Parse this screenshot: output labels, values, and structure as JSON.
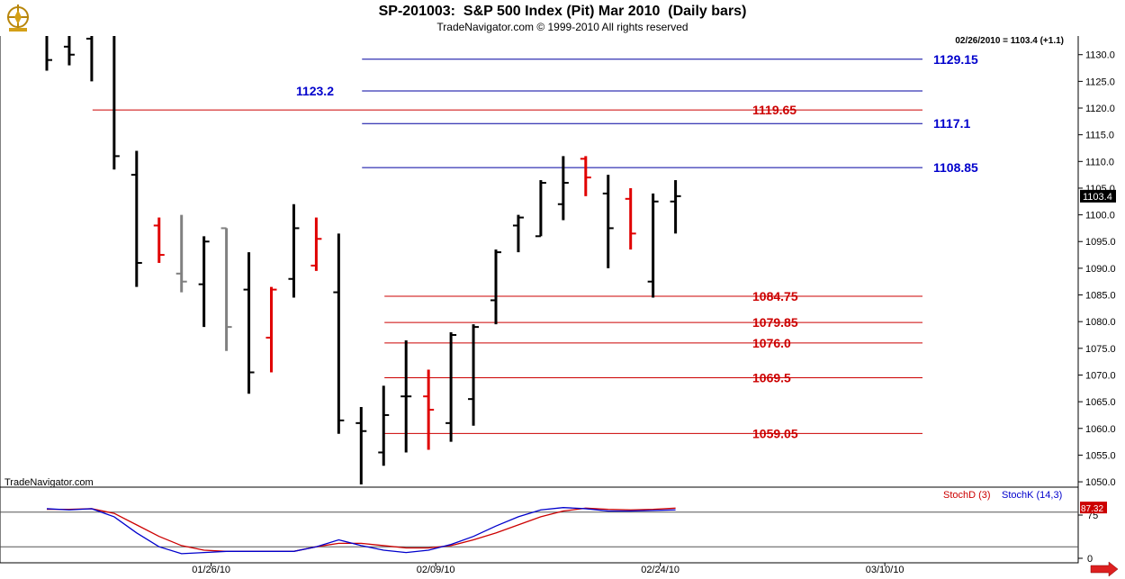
{
  "header": {
    "title": "SP-201003:  S&P 500 Index (Pit) Mar 2010  (Daily bars)",
    "copyright": "TradeNavigator.com © 1999-2010 All rights reserved",
    "last_quote": "02/26/2010 = 1103.4 (+1.1)",
    "watermark": "TradeNavigator.com"
  },
  "colors": {
    "up": "#000000",
    "down": "#e00000",
    "neutral": "#808080",
    "green": "#22dd22",
    "support_line": "#cc0000",
    "resistance_line": "#0000a0",
    "stoch_d": "#cc0000",
    "stoch_k": "#0000cc"
  },
  "chart_data": [
    {
      "type": "ohlc",
      "title": "SP-201003:  S&P 500 Index (Pit) Mar 2010  (Daily bars)",
      "ylim": [
        1049,
        1134
      ],
      "y_ticks": [
        1050.0,
        1055.0,
        1060.0,
        1065.0,
        1070.0,
        1075.0,
        1080.0,
        1085.0,
        1090.0,
        1095.0,
        1100.0,
        1105.0,
        1110.0,
        1115.0,
        1120.0,
        1125.0,
        1130.0
      ],
      "x_labels": [
        {
          "label": "01/26/10",
          "index": 7
        },
        {
          "label": "02/09/10",
          "index": 17
        },
        {
          "label": "02/24/10",
          "index": 27
        },
        {
          "label": "03/10/10",
          "index": 37
        }
      ],
      "last_price": "1103.4",
      "bars": [
        {
          "o": 1136.0,
          "h": 1136.0,
          "l": 1127.0,
          "c": 1129.0,
          "color": "black"
        },
        {
          "o": 1131.5,
          "h": 1136.0,
          "l": 1128.0,
          "c": 1130.0,
          "color": "black"
        },
        {
          "o": 1133.0,
          "h": 1136.0,
          "l": 1125.0,
          "c": 1134.0,
          "color": "black"
        },
        {
          "o": 1134.0,
          "h": 1136.0,
          "l": 1108.5,
          "c": 1111.0,
          "color": "black"
        },
        {
          "o": 1107.5,
          "h": 1112.0,
          "l": 1086.5,
          "c": 1091.0,
          "color": "black"
        },
        {
          "o": 1098.0,
          "h": 1099.5,
          "l": 1091.0,
          "c": 1092.5,
          "color": "red"
        },
        {
          "o": 1089.0,
          "h": 1100.0,
          "l": 1085.5,
          "c": 1087.5,
          "color": "gray"
        },
        {
          "o": 1087.0,
          "h": 1096.0,
          "l": 1079.0,
          "c": 1095.0,
          "color": "black"
        },
        {
          "o": 1097.5,
          "h": 1097.5,
          "l": 1074.5,
          "c": 1079.0,
          "color": "gray"
        },
        {
          "o": 1086.0,
          "h": 1093.0,
          "l": 1066.5,
          "c": 1070.5,
          "color": "black"
        },
        {
          "o": 1077.0,
          "h": 1086.5,
          "l": 1070.5,
          "c": 1086.0,
          "color": "red"
        },
        {
          "o": 1088.0,
          "h": 1102.0,
          "l": 1084.5,
          "c": 1097.5,
          "color": "black"
        },
        {
          "o": 1090.5,
          "h": 1099.5,
          "l": 1089.5,
          "c": 1095.5,
          "color": "red"
        },
        {
          "o": 1085.5,
          "h": 1096.5,
          "l": 1059.0,
          "c": 1061.5,
          "color": "black"
        },
        {
          "o": 1061.0,
          "h": 1064.0,
          "l": 1049.5,
          "c": 1059.5,
          "color": "black"
        },
        {
          "o": 1055.5,
          "h": 1068.0,
          "l": 1053.0,
          "c": 1062.5,
          "color": "black"
        },
        {
          "o": 1066.0,
          "h": 1076.5,
          "l": 1055.5,
          "c": 1066.0,
          "color": "black"
        },
        {
          "o": 1066.0,
          "h": 1071.0,
          "l": 1056.0,
          "c": 1063.5,
          "color": "red"
        },
        {
          "o": 1061.0,
          "h": 1078.0,
          "l": 1057.5,
          "c": 1077.5,
          "color": "black"
        },
        {
          "o": 1065.5,
          "h": 1079.5,
          "l": 1060.5,
          "c": 1079.0,
          "color": "black"
        },
        {
          "o": 1084.0,
          "h": 1093.5,
          "l": 1079.5,
          "c": 1093.0,
          "color": "black"
        },
        {
          "o": 1098.0,
          "h": 1100.0,
          "l": 1093.0,
          "c": 1099.5,
          "color": "black"
        },
        {
          "o": 1096.0,
          "h": 1106.5,
          "l": 1096.0,
          "c": 1106.0,
          "color": "black"
        },
        {
          "o": 1102.0,
          "h": 1111.0,
          "l": 1099.0,
          "c": 1106.0,
          "color": "black"
        },
        {
          "o": 1110.5,
          "h": 1111.0,
          "l": 1103.5,
          "c": 1107.0,
          "color": "red"
        },
        {
          "o": 1104.0,
          "h": 1107.5,
          "l": 1090.0,
          "c": 1097.5,
          "color": "black"
        },
        {
          "o": 1103.0,
          "h": 1105.0,
          "l": 1093.5,
          "c": 1096.5,
          "color": "red"
        },
        {
          "o": 1087.5,
          "h": 1104.0,
          "l": 1084.5,
          "c": 1102.5,
          "color": "black"
        },
        {
          "o": 1102.5,
          "h": 1106.5,
          "l": 1096.5,
          "c": 1103.5,
          "color": "black"
        }
      ],
      "levels": [
        {
          "value": 1129.15,
          "label": "1129.15",
          "color": "blue",
          "start_index": 15,
          "label_side": "right"
        },
        {
          "value": 1123.2,
          "label": "1123.2",
          "color": "blue",
          "start_index": 15,
          "label_side": "left"
        },
        {
          "value": 1119.65,
          "label": "1119.65",
          "color": "red",
          "start_index": 3,
          "label_side": "right"
        },
        {
          "value": 1117.1,
          "label": "1117.1",
          "color": "blue",
          "start_index": 15,
          "label_side": "right"
        },
        {
          "value": 1108.85,
          "label": "1108.85",
          "color": "blue",
          "start_index": 15,
          "label_side": "right"
        },
        {
          "value": 1084.75,
          "label": "1084.75",
          "color": "red",
          "start_index": 16,
          "label_side": "right"
        },
        {
          "value": 1079.85,
          "label": "1079.85",
          "color": "red",
          "start_index": 16,
          "label_side": "right"
        },
        {
          "value": 1076.0,
          "label": "1076.0",
          "color": "red",
          "start_index": 16,
          "label_side": "right"
        },
        {
          "value": 1069.5,
          "label": "1069.5",
          "color": "red",
          "start_index": 16,
          "label_side": "right"
        },
        {
          "value": 1059.05,
          "label": "1059.05",
          "color": "red",
          "start_index": 16,
          "label_side": "right"
        }
      ]
    },
    {
      "type": "line",
      "ylim": [
        0,
        100
      ],
      "y_ticks": [
        0,
        75
      ],
      "reference_lines": [
        20,
        80
      ],
      "last_value": "87.32",
      "series": [
        {
          "name": "StochD (3)",
          "color": "red",
          "values": [
            85,
            85,
            86,
            78,
            58,
            38,
            22,
            14,
            12,
            12,
            12,
            12,
            20,
            26,
            26,
            22,
            18,
            18,
            22,
            32,
            44,
            58,
            72,
            82,
            87,
            85,
            84,
            85,
            87
          ]
        },
        {
          "name": "StochK (14,3)",
          "color": "blue",
          "values": [
            86,
            84,
            86,
            72,
            44,
            20,
            8,
            10,
            12,
            12,
            12,
            12,
            20,
            32,
            22,
            14,
            10,
            14,
            24,
            38,
            56,
            72,
            84,
            88,
            86,
            82,
            82,
            83,
            84
          ]
        }
      ]
    }
  ]
}
